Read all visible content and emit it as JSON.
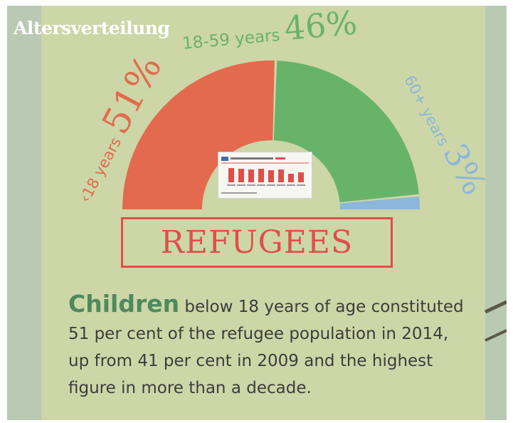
{
  "brand": "Altersverteilung",
  "title_box": "REFUGEES",
  "caption": {
    "lead": "Children",
    "rest": " below 18 years of age constituted 51 per cent of the refugee population in 2014, up from 41 per cent in 2009 and the highest figure in more than a decade."
  },
  "chart_data": {
    "type": "pie",
    "title": "",
    "categories": [
      "‹18 years",
      "18-59 years",
      "60+ years"
    ],
    "values": [
      51,
      46,
      3
    ],
    "labels": [
      {
        "text": "‹18 years",
        "pct": "51%"
      },
      {
        "text": "18-59 years",
        "pct": "46%"
      },
      {
        "text": "60+ years",
        "pct": "3%"
      }
    ],
    "colors": [
      "#e36a4e",
      "#68b36a",
      "#8ab7db"
    ],
    "shape": "semicircle-donut"
  },
  "colors": {
    "background": "#cdd6a6",
    "accent_red": "#e04e4b",
    "accent_green": "#4e8a5e"
  }
}
